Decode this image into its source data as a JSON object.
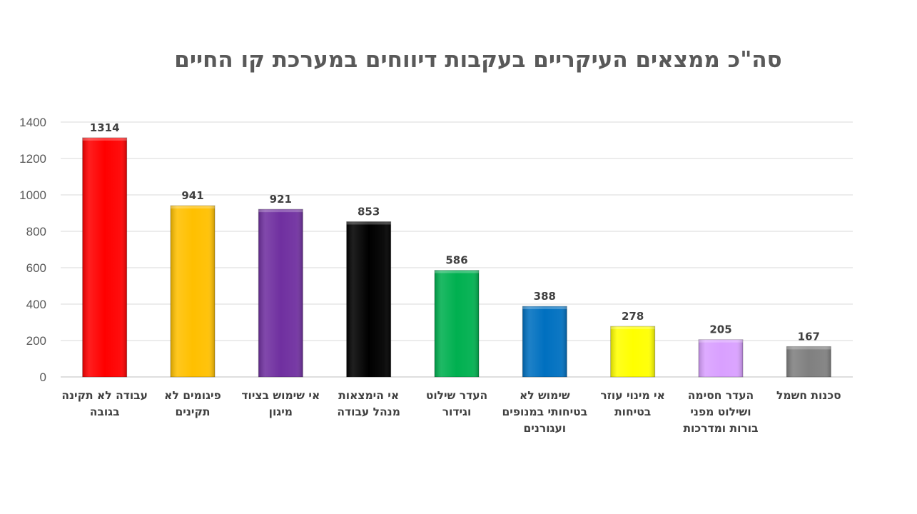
{
  "chart_data": {
    "type": "bar",
    "title": "סה\"כ ממצאים העיקריים בעקבות דיווחים במערכת קו החיים",
    "categories": [
      "עבודה לא תקינה בגובה",
      "פיגומים לא תקינים",
      "אי שימוש בציוד מיגון",
      "אי הימצאות מנהל עבודה",
      "העדר שילוט וגידור",
      "שימוש לא בטיחותי במנופים ועגורנים",
      "אי מינוי עוזר בטיחות",
      "העדר חסימה ושילוט מפני בורות ומדרכות",
      "סכנות חשמל"
    ],
    "values": [
      1314,
      941,
      921,
      853,
      586,
      388,
      278,
      205,
      167
    ],
    "data_labels": [
      "1314",
      "941",
      "921",
      "853",
      "586",
      "388",
      "278",
      "205",
      "167"
    ],
    "colors": [
      "#FF0000",
      "#FFC000",
      "#7030A0",
      "#000000",
      "#00B050",
      "#0070C0",
      "#FFFF00",
      "#D9A0FF",
      "#808080"
    ],
    "ylim": [
      0,
      1400
    ],
    "yticks": [
      0,
      200,
      400,
      600,
      800,
      1000,
      1200,
      1400
    ],
    "grid": true,
    "legend": "none"
  }
}
